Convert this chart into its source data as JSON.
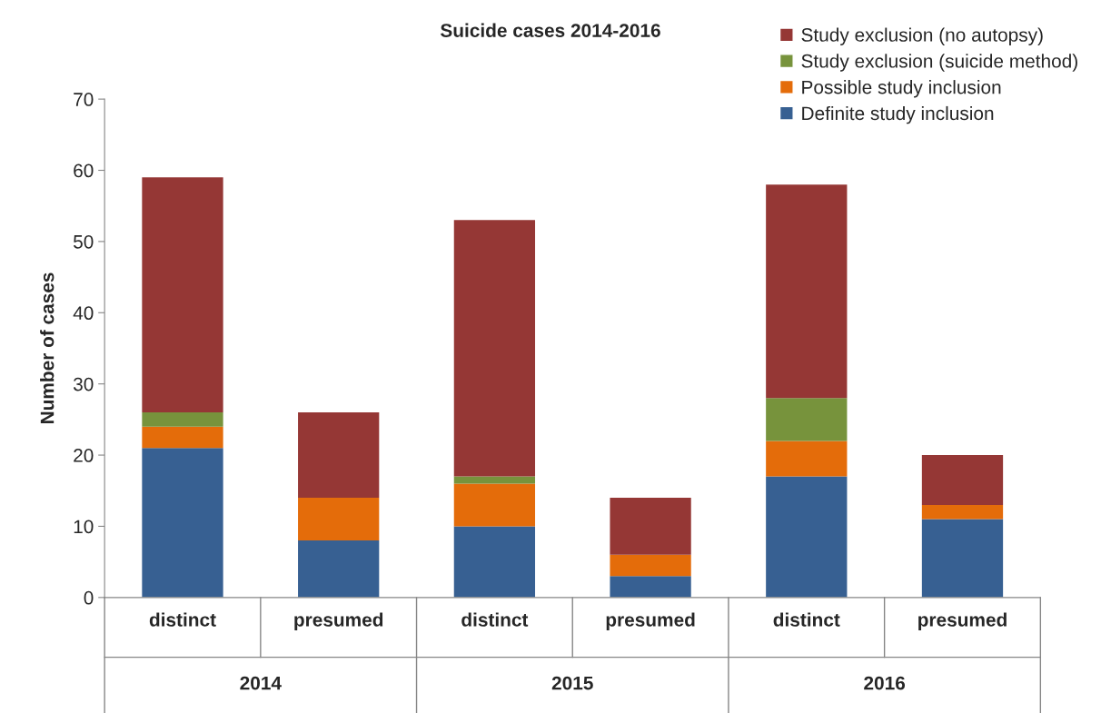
{
  "chart_data": {
    "type": "bar",
    "title": "Suicide cases 2014-2016",
    "ylabel": "Number of cases",
    "categories": [
      "distinct",
      "presumed",
      "distinct",
      "presumed",
      "distinct",
      "presumed"
    ],
    "annotations": [
      "2014",
      "2015",
      "2016"
    ],
    "stacked": true,
    "ylim": [
      0,
      70
    ],
    "yticks": [
      0,
      10,
      20,
      30,
      40,
      50,
      60,
      70
    ],
    "legend": "top right",
    "series": [
      {
        "name": "Definite study inclusion",
        "color": "#376092",
        "values": [
          21,
          8,
          10,
          3,
          17,
          11
        ]
      },
      {
        "name": "Possible study inclusion",
        "color": "#e46c0a",
        "values": [
          3,
          6,
          6,
          3,
          5,
          2
        ]
      },
      {
        "name": "Study exclusion (suicide method)",
        "color": "#77933c",
        "values": [
          2,
          0,
          1,
          0,
          6,
          0
        ]
      },
      {
        "name": "Study exclusion (no autopsy)",
        "color": "#953735",
        "values": [
          33,
          12,
          36,
          8,
          30,
          7
        ]
      }
    ]
  }
}
